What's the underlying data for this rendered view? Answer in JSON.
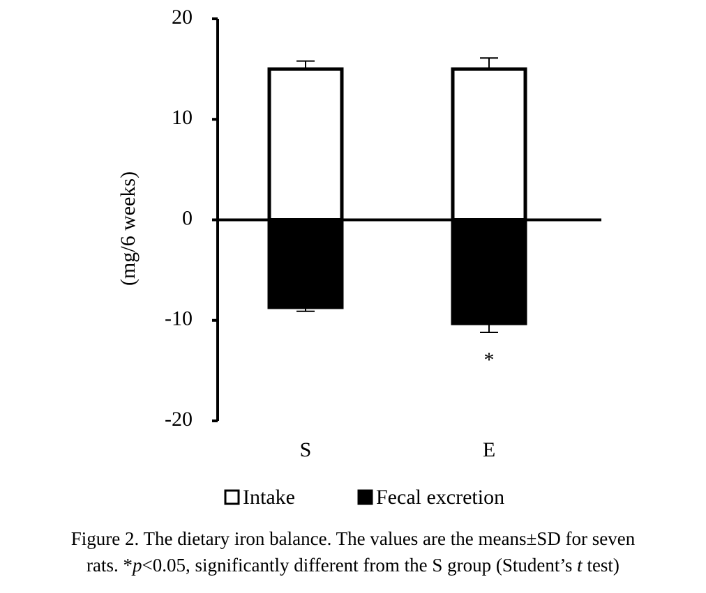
{
  "chart_data": {
    "type": "bar",
    "ylabel": "(mg/6 weeks)",
    "categories": [
      "S",
      "E"
    ],
    "series": [
      {
        "name": "Intake",
        "color": "#ffffff",
        "values": [
          15.0,
          15.0
        ],
        "errors": [
          0.8,
          1.1
        ]
      },
      {
        "name": "Fecal excretion",
        "color": "#000000",
        "values": [
          -8.7,
          -10.3
        ],
        "errors": [
          0.4,
          0.9
        ]
      }
    ],
    "edgecolor": "#000000",
    "ylim": [
      -20,
      20
    ],
    "yticks": [
      -20,
      -10,
      0,
      10,
      20
    ],
    "annotation": "*",
    "caption": {
      "line1": "Figure 2. The dietary iron balance. The values are the means±SD for seven",
      "line2": [
        "rats. *",
        "p",
        "<0.05, significantly different from the S group (Student’s ",
        "t",
        " test)"
      ]
    }
  }
}
